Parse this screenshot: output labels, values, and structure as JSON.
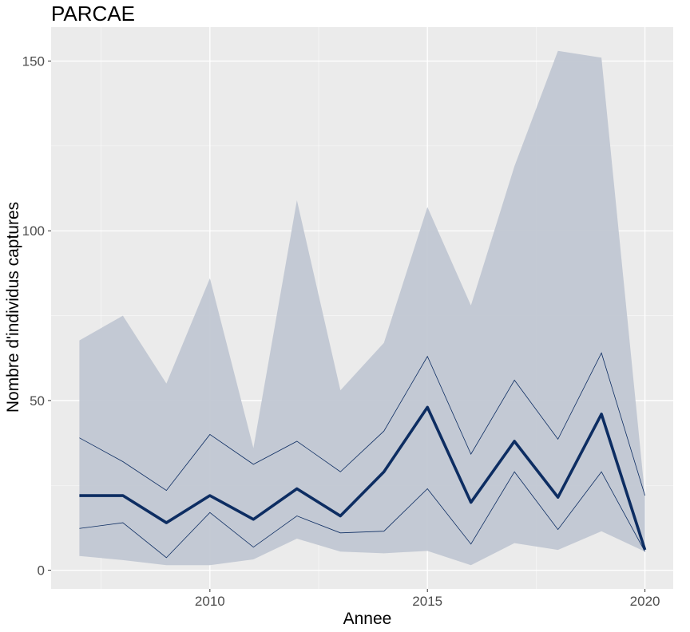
{
  "chart_data": {
    "type": "line",
    "title": "PARCAE",
    "xlabel": "Annee",
    "ylabel": "Nombre d'individus captures",
    "xlim": [
      2006.35,
      2020.65
    ],
    "ylim": [
      -5.5,
      160
    ],
    "x_ticks": [
      2010,
      2015,
      2020
    ],
    "y_ticks": [
      0,
      50,
      100,
      150
    ],
    "x_minor_ticks": [
      2007.5,
      2012.5,
      2017.5
    ],
    "y_minor_ticks": [
      25,
      75,
      125
    ],
    "grid": true,
    "legend": "none",
    "x": [
      2007,
      2008,
      2009,
      2010,
      2011,
      2012,
      2013,
      2014,
      2015,
      2016,
      2017,
      2018,
      2019,
      2020
    ],
    "series": [
      {
        "role": "band_outer",
        "lower": [
          4.2,
          3,
          1.5,
          1.5,
          3.2,
          9.3,
          5.5,
          5,
          5.7,
          1.5,
          8,
          6,
          11.5,
          5.5
        ],
        "upper": [
          67.7,
          75,
          55,
          86,
          36,
          109,
          53,
          67,
          107,
          78,
          119,
          153,
          151,
          22
        ]
      },
      {
        "role": "band_inner",
        "lower": [
          12.3,
          14,
          3.7,
          17,
          6.8,
          16,
          11,
          11.5,
          24,
          7.7,
          29,
          12,
          29,
          5.5
        ],
        "upper": [
          39,
          32,
          23.5,
          40,
          31.2,
          38,
          29,
          41,
          63,
          34.2,
          56,
          38.6,
          64,
          22
        ]
      },
      {
        "role": "median",
        "values": [
          22,
          22,
          14,
          22,
          15,
          24,
          16,
          29,
          48,
          20,
          38,
          21.5,
          46,
          6
        ]
      }
    ],
    "colors": {
      "panel": "#ebebeb",
      "grid_major": "#ffffff",
      "band": "#bfc6d1",
      "line": "#0d2d62",
      "tick": "#333333"
    }
  }
}
